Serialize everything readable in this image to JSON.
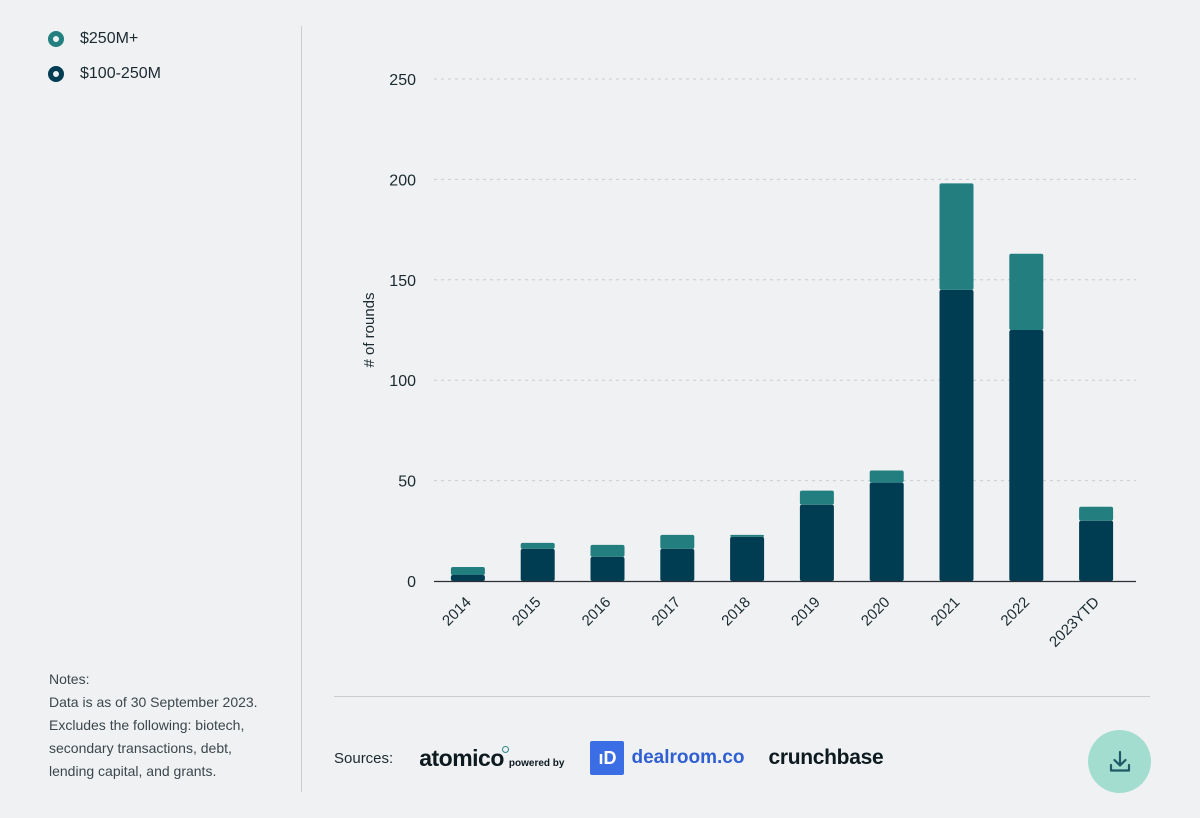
{
  "legend": {
    "items": [
      {
        "label": "$250M+",
        "color": "#237e80"
      },
      {
        "label": "$100-250M",
        "color": "#003d52"
      }
    ]
  },
  "notes": {
    "lines": [
      "Notes:",
      "Data is as of 30 September 2023.",
      "Excludes the following: biotech,",
      "secondary transactions, debt,",
      "lending capital, and grants."
    ]
  },
  "sources": {
    "label": "Sources:",
    "atomico": "atomico",
    "powered_by": "powered by",
    "dealroom_icon": "ıD",
    "dealroom": "dealroom.co",
    "crunchbase": "crunchbase"
  },
  "download_icon": "download-icon",
  "chart_data": {
    "type": "bar",
    "stacked": true,
    "categories": [
      "2014",
      "2015",
      "2016",
      "2017",
      "2018",
      "2019",
      "2020",
      "2021",
      "2022",
      "2023YTD"
    ],
    "series": [
      {
        "name": "$100-250M",
        "color": "#003d52",
        "values": [
          3,
          16,
          12,
          16,
          22,
          38,
          49,
          145,
          125,
          30
        ]
      },
      {
        "name": "$250M+",
        "color": "#237e80",
        "values": [
          4,
          3,
          6,
          7,
          1,
          7,
          6,
          53,
          38,
          7
        ]
      }
    ],
    "ylabel": "# of rounds",
    "xlabel": "",
    "ylim": [
      0,
      250
    ],
    "yticks": [
      0,
      50,
      100,
      150,
      200,
      250
    ],
    "grid": true
  }
}
